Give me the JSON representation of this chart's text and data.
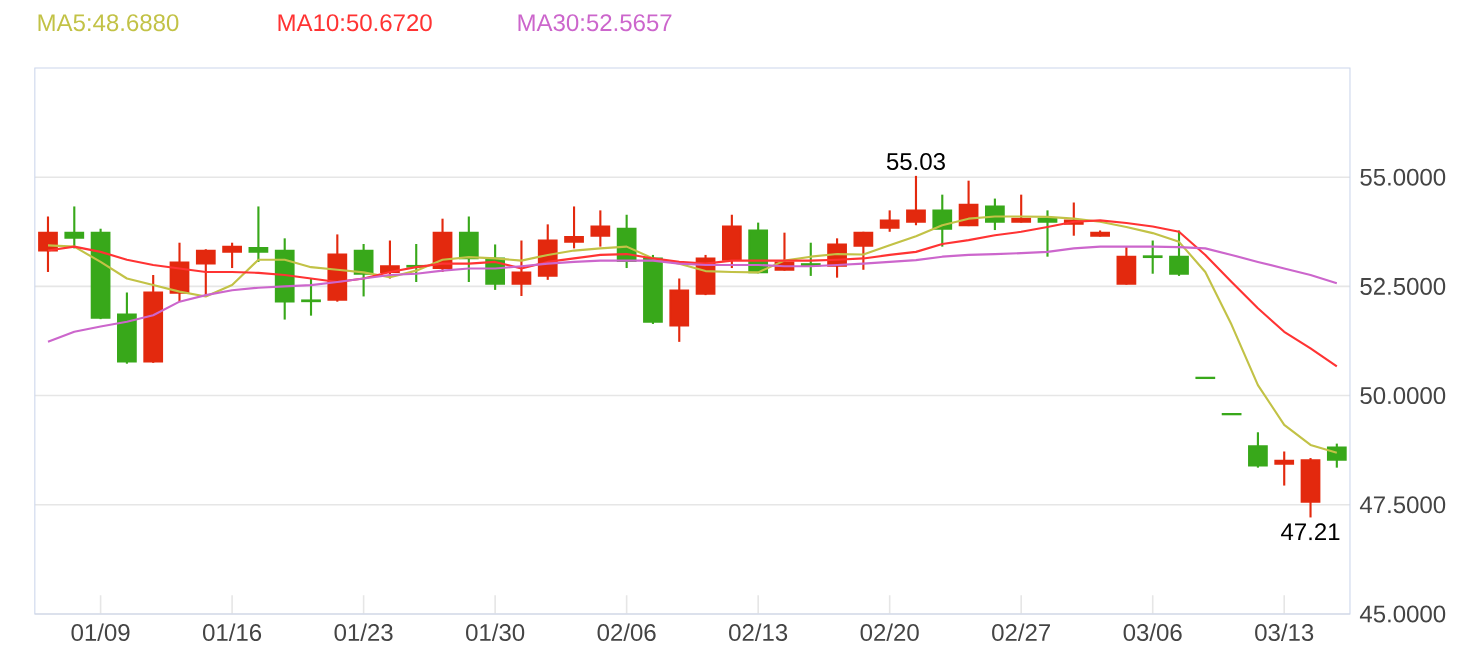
{
  "chart_data": {
    "type": "candlestick",
    "categories": [
      null,
      null,
      "01/09",
      null,
      null,
      null,
      null,
      "01/16",
      null,
      null,
      null,
      null,
      "01/23",
      null,
      null,
      null,
      null,
      "01/30",
      null,
      null,
      null,
      null,
      "02/06",
      null,
      null,
      null,
      null,
      "02/13",
      null,
      null,
      null,
      null,
      "02/20",
      null,
      null,
      null,
      null,
      "02/27",
      null,
      null,
      null,
      null,
      "03/06",
      null,
      null,
      null,
      null,
      "03/13",
      null,
      null
    ],
    "ohlc": [
      [
        53.32,
        54.1,
        52.83,
        53.73
      ],
      [
        53.73,
        54.33,
        53.37,
        53.61
      ],
      [
        53.73,
        53.82,
        51.75,
        51.78
      ],
      [
        51.86,
        52.36,
        50.73,
        50.78
      ],
      [
        50.78,
        52.76,
        50.75,
        52.36
      ],
      [
        52.35,
        53.5,
        52.15,
        53.05
      ],
      [
        53.02,
        53.35,
        52.27,
        53.32
      ],
      [
        53.29,
        53.5,
        52.92,
        53.41
      ],
      [
        53.38,
        54.33,
        53.06,
        53.29
      ],
      [
        53.32,
        53.6,
        51.74,
        52.15
      ],
      [
        52.18,
        52.68,
        51.83,
        52.16
      ],
      [
        52.19,
        53.69,
        52.15,
        53.23
      ],
      [
        53.32,
        53.47,
        52.27,
        52.79
      ],
      [
        52.83,
        53.55,
        52.68,
        52.96
      ],
      [
        52.97,
        53.47,
        52.6,
        52.95
      ],
      [
        52.92,
        54.05,
        52.83,
        53.73
      ],
      [
        53.73,
        54.1,
        52.6,
        53.14
      ],
      [
        53.14,
        53.46,
        52.42,
        52.56
      ],
      [
        52.56,
        53.55,
        52.28,
        52.82
      ],
      [
        52.74,
        53.92,
        52.65,
        53.55
      ],
      [
        53.52,
        54.33,
        53.37,
        53.63
      ],
      [
        53.66,
        54.24,
        53.41,
        53.87
      ],
      [
        53.82,
        54.14,
        52.92,
        53.08
      ],
      [
        53.14,
        53.22,
        51.64,
        51.69
      ],
      [
        51.6,
        52.68,
        51.23,
        52.41
      ],
      [
        52.33,
        53.22,
        52.3,
        53.14
      ],
      [
        53.11,
        54.14,
        52.92,
        53.87
      ],
      [
        53.78,
        53.96,
        52.8,
        52.82
      ],
      [
        52.88,
        53.73,
        52.86,
        53.05
      ],
      [
        53.01,
        53.5,
        52.74,
        52.98
      ],
      [
        52.97,
        53.6,
        52.7,
        53.46
      ],
      [
        53.43,
        53.75,
        52.88,
        53.73
      ],
      [
        53.84,
        54.24,
        53.75,
        54.01
      ],
      [
        53.98,
        55.03,
        53.9,
        54.24
      ],
      [
        54.24,
        54.6,
        53.41,
        53.82
      ],
      [
        53.9,
        54.92,
        53.88,
        54.37
      ],
      [
        54.33,
        54.51,
        53.79,
        53.98
      ],
      [
        53.98,
        54.6,
        53.96,
        54.05
      ],
      [
        54.05,
        54.24,
        53.18,
        53.98
      ],
      [
        53.93,
        54.42,
        53.66,
        54.01
      ],
      [
        53.66,
        53.78,
        53.64,
        53.73
      ],
      [
        52.56,
        53.41,
        52.54,
        53.18
      ],
      [
        53.19,
        53.55,
        52.79,
        53.17
      ],
      [
        53.18,
        53.78,
        52.74,
        52.79
      ],
      [
        50.41,
        50.42,
        50.39,
        50.4
      ],
      [
        49.58,
        49.59,
        49.56,
        49.57
      ],
      [
        48.84,
        49.16,
        48.35,
        48.4
      ],
      [
        48.44,
        48.72,
        47.94,
        48.51
      ],
      [
        47.57,
        48.57,
        47.21,
        48.52
      ],
      [
        48.81,
        48.9,
        48.35,
        48.53
      ]
    ],
    "colors": [
      "#e3290e",
      "#38a81a",
      "#38a81a",
      "#38a81a",
      "#e3290e",
      "#e3290e",
      "#e3290e",
      "#e3290e",
      "#38a81a",
      "#38a81a",
      "#38a81a",
      "#e3290e",
      "#38a81a",
      "#e3290e",
      "#38a81a",
      "#e3290e",
      "#38a81a",
      "#38a81a",
      "#e3290e",
      "#e3290e",
      "#e3290e",
      "#e3290e",
      "#38a81a",
      "#38a81a",
      "#e3290e",
      "#e3290e",
      "#e3290e",
      "#38a81a",
      "#e3290e",
      "#38a81a",
      "#e3290e",
      "#e3290e",
      "#e3290e",
      "#e3290e",
      "#38a81a",
      "#e3290e",
      "#38a81a",
      "#e3290e",
      "#38a81a",
      "#e3290e",
      "#e3290e",
      "#e3290e",
      "#38a81a",
      "#38a81a",
      "#38a81a",
      "#38a81a",
      "#38a81a",
      "#e3290e",
      "#e3290e",
      "#38a81a"
    ],
    "series": [
      {
        "name": "MA5:48.6880",
        "type": "line",
        "color": "#c2c246",
        "values": [
          53.44,
          53.41,
          53.06,
          52.68,
          52.53,
          52.38,
          52.27,
          52.53,
          53.11,
          53.11,
          52.94,
          52.88,
          52.82,
          52.71,
          52.86,
          53.11,
          53.17,
          53.14,
          53.09,
          53.22,
          53.32,
          53.37,
          53.41,
          53.14,
          53.02,
          52.85,
          52.83,
          52.82,
          53.09,
          53.18,
          53.24,
          53.23,
          53.44,
          53.65,
          53.9,
          54.05,
          54.1,
          54.1,
          54.09,
          54.05,
          53.98,
          53.86,
          53.72,
          53.52,
          52.83,
          51.62,
          50.24,
          49.33,
          48.87,
          48.69
        ]
      },
      {
        "name": "MA10:50.6720",
        "type": "line",
        "color": "#ff3333",
        "values": [
          53.32,
          53.41,
          53.29,
          53.11,
          52.99,
          52.91,
          52.83,
          52.83,
          52.81,
          52.76,
          52.68,
          52.6,
          52.68,
          52.83,
          52.94,
          53.02,
          53.02,
          53.06,
          52.91,
          53.06,
          53.14,
          53.22,
          53.24,
          53.14,
          53.06,
          53.02,
          53.09,
          53.09,
          53.09,
          53.09,
          53.11,
          53.14,
          53.22,
          53.29,
          53.47,
          53.56,
          53.67,
          53.75,
          53.86,
          53.98,
          54.01,
          53.95,
          53.87,
          53.75,
          53.22,
          52.6,
          52.0,
          51.46,
          51.08,
          50.67
        ]
      },
      {
        "name": "MA30:52.5657",
        "type": "line",
        "color": "#cc66cc",
        "values": [
          51.23,
          51.46,
          51.58,
          51.69,
          51.84,
          52.15,
          52.3,
          52.41,
          52.47,
          52.5,
          52.53,
          52.6,
          52.68,
          52.76,
          52.79,
          52.86,
          52.91,
          52.91,
          52.96,
          53.02,
          53.06,
          53.09,
          53.09,
          53.09,
          53.02,
          52.99,
          52.99,
          52.99,
          52.96,
          52.96,
          52.99,
          53.02,
          53.06,
          53.1,
          53.18,
          53.22,
          53.24,
          53.26,
          53.29,
          53.37,
          53.41,
          53.41,
          53.41,
          53.4,
          53.37,
          53.22,
          53.06,
          52.91,
          52.76,
          52.57
        ]
      }
    ],
    "ylim": [
      45,
      57.5
    ],
    "yticks": [
      {
        "value": 45,
        "label": "45.0000"
      },
      {
        "value": 47.5,
        "label": "47.5000"
      },
      {
        "value": 50,
        "label": "50.0000"
      },
      {
        "value": 52.5,
        "label": "52.5000"
      },
      {
        "value": 55,
        "label": "55.0000"
      }
    ],
    "grid": "y",
    "legend": "top left",
    "annotations": [
      {
        "text": "55.03",
        "y": 55.03
      },
      {
        "text": "47.21",
        "y": 47.21
      }
    ]
  }
}
